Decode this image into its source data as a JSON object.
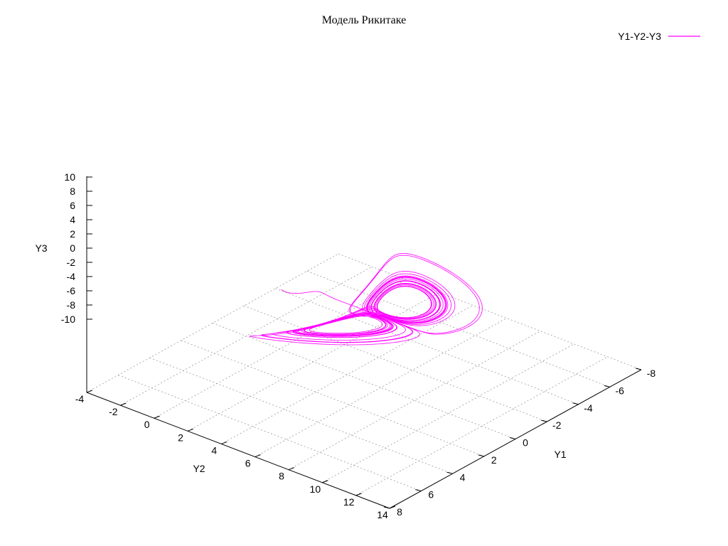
{
  "chart_data": {
    "type": "line",
    "projection": "3d",
    "title": "Модель Рикитаке",
    "series": [
      {
        "name": "Y1-Y2-Y3",
        "color": "#ff00ff"
      }
    ],
    "axes": {
      "y1": {
        "label": "Y1",
        "range": [
          -8,
          8
        ],
        "ticks": [
          "-8",
          "-6",
          "-4",
          "-2",
          "0",
          "2",
          "4",
          "6",
          "8"
        ]
      },
      "y2": {
        "label": "Y2",
        "range": [
          -4,
          14
        ],
        "ticks": [
          "-4",
          "-2",
          "0",
          "2",
          "4",
          "6",
          "8",
          "10",
          "12",
          "14"
        ]
      },
      "y3": {
        "label": "Y3",
        "range": [
          -10,
          10
        ],
        "ticks": [
          "10",
          "8",
          "6",
          "4",
          "2",
          "0",
          "-2",
          "-4",
          "-6",
          "-8",
          "-10"
        ]
      }
    },
    "grid": true,
    "legend_position": "top-right"
  }
}
